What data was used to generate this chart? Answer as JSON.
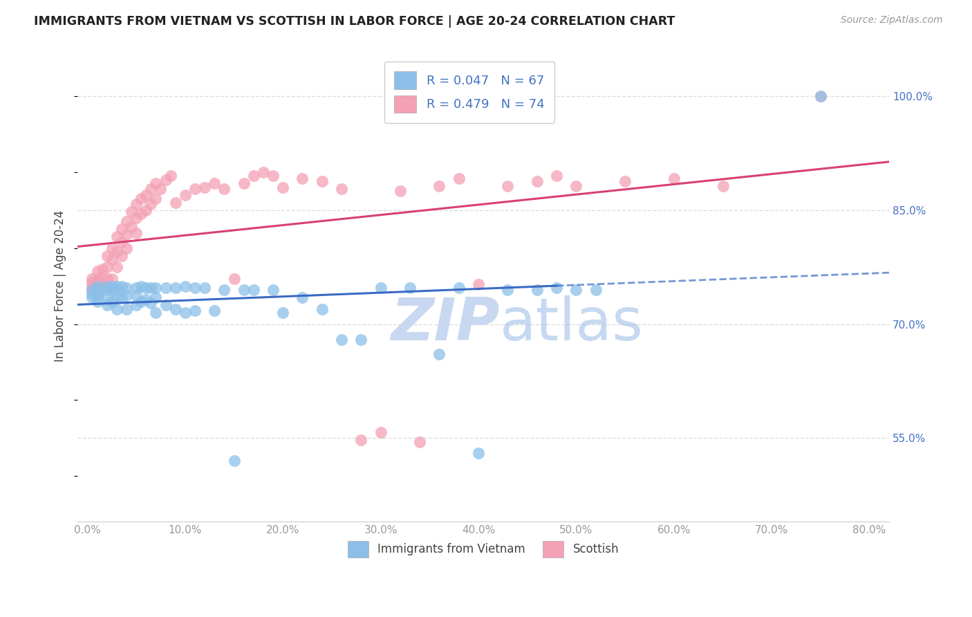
{
  "title": "IMMIGRANTS FROM VIETNAM VS SCOTTISH IN LABOR FORCE | AGE 20-24 CORRELATION CHART",
  "source": "Source: ZipAtlas.com",
  "ylabel": "In Labor Force | Age 20-24",
  "xlabel_ticks": [
    "0.0%",
    "10.0%",
    "20.0%",
    "30.0%",
    "40.0%",
    "50.0%",
    "60.0%",
    "70.0%",
    "80.0%"
  ],
  "xlabel_vals": [
    0.0,
    0.1,
    0.2,
    0.3,
    0.4,
    0.5,
    0.6,
    0.7,
    0.8
  ],
  "ylabel_ticks": [
    "55.0%",
    "70.0%",
    "85.0%",
    "100.0%"
  ],
  "ylabel_vals": [
    0.55,
    0.7,
    0.85,
    1.0
  ],
  "xlim": [
    -0.01,
    0.82
  ],
  "ylim": [
    0.44,
    1.06
  ],
  "vietnam_R": 0.047,
  "vietnam_N": 67,
  "scottish_R": 0.479,
  "scottish_N": 74,
  "vietnam_color": "#8BBFE8",
  "scottish_color": "#F4A0B5",
  "vietnam_line_color": "#3A6BC4",
  "scottish_line_color": "#D94070",
  "background_color": "#FFFFFF",
  "grid_color": "#DDDDDD",
  "watermark_color": "#C8D8F0",
  "vietnam_x": [
    0.005,
    0.005,
    0.005,
    0.01,
    0.01,
    0.01,
    0.01,
    0.01,
    0.02,
    0.02,
    0.02,
    0.02,
    0.025,
    0.025,
    0.025,
    0.03,
    0.03,
    0.03,
    0.03,
    0.035,
    0.035,
    0.04,
    0.04,
    0.04,
    0.05,
    0.05,
    0.05,
    0.055,
    0.055,
    0.06,
    0.06,
    0.065,
    0.065,
    0.07,
    0.07,
    0.07,
    0.08,
    0.08,
    0.09,
    0.09,
    0.1,
    0.1,
    0.11,
    0.11,
    0.12,
    0.13,
    0.14,
    0.15,
    0.16,
    0.17,
    0.19,
    0.2,
    0.22,
    0.24,
    0.26,
    0.28,
    0.3,
    0.33,
    0.36,
    0.38,
    0.4,
    0.43,
    0.46,
    0.48,
    0.5,
    0.52,
    0.75
  ],
  "vietnam_y": [
    0.745,
    0.74,
    0.735,
    0.75,
    0.745,
    0.74,
    0.735,
    0.73,
    0.75,
    0.745,
    0.735,
    0.725,
    0.75,
    0.745,
    0.73,
    0.75,
    0.745,
    0.735,
    0.72,
    0.75,
    0.735,
    0.748,
    0.738,
    0.72,
    0.748,
    0.738,
    0.725,
    0.75,
    0.73,
    0.748,
    0.732,
    0.748,
    0.728,
    0.748,
    0.735,
    0.715,
    0.748,
    0.725,
    0.748,
    0.72,
    0.75,
    0.715,
    0.748,
    0.718,
    0.748,
    0.718,
    0.745,
    0.52,
    0.745,
    0.745,
    0.745,
    0.715,
    0.735,
    0.72,
    0.68,
    0.68,
    0.748,
    0.748,
    0.66,
    0.748,
    0.53,
    0.745,
    0.745,
    0.748,
    0.745,
    0.745,
    1.0
  ],
  "scottish_x": [
    0.005,
    0.005,
    0.005,
    0.005,
    0.01,
    0.01,
    0.01,
    0.01,
    0.01,
    0.015,
    0.015,
    0.015,
    0.02,
    0.02,
    0.02,
    0.02,
    0.025,
    0.025,
    0.025,
    0.03,
    0.03,
    0.03,
    0.035,
    0.035,
    0.035,
    0.04,
    0.04,
    0.04,
    0.045,
    0.045,
    0.05,
    0.05,
    0.05,
    0.055,
    0.055,
    0.06,
    0.06,
    0.065,
    0.065,
    0.07,
    0.07,
    0.075,
    0.08,
    0.085,
    0.09,
    0.1,
    0.11,
    0.12,
    0.13,
    0.14,
    0.15,
    0.16,
    0.17,
    0.18,
    0.19,
    0.2,
    0.22,
    0.24,
    0.26,
    0.28,
    0.3,
    0.32,
    0.34,
    0.36,
    0.38,
    0.4,
    0.43,
    0.46,
    0.48,
    0.5,
    0.55,
    0.6,
    0.65,
    0.75
  ],
  "scottish_y": [
    0.75,
    0.755,
    0.76,
    0.745,
    0.76,
    0.77,
    0.755,
    0.748,
    0.74,
    0.772,
    0.76,
    0.748,
    0.79,
    0.775,
    0.76,
    0.748,
    0.8,
    0.785,
    0.76,
    0.815,
    0.795,
    0.775,
    0.825,
    0.808,
    0.79,
    0.835,
    0.818,
    0.8,
    0.848,
    0.828,
    0.858,
    0.84,
    0.82,
    0.865,
    0.845,
    0.87,
    0.85,
    0.878,
    0.858,
    0.885,
    0.865,
    0.878,
    0.89,
    0.895,
    0.86,
    0.87,
    0.878,
    0.88,
    0.885,
    0.878,
    0.76,
    0.885,
    0.895,
    0.9,
    0.895,
    0.88,
    0.892,
    0.888,
    0.878,
    0.548,
    0.558,
    0.875,
    0.545,
    0.882,
    0.892,
    0.752,
    0.882,
    0.888,
    0.895,
    0.882,
    0.888,
    0.892,
    0.882,
    1.0
  ]
}
